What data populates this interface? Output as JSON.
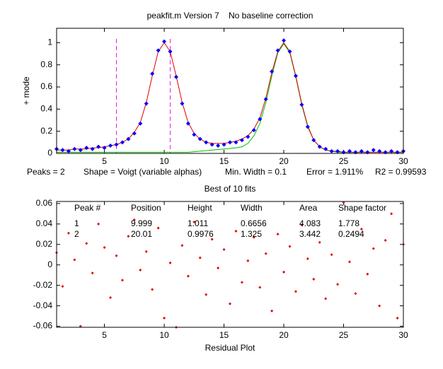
{
  "chart_data": [
    {
      "type": "line",
      "title": "peakfit.m Version 7    No baseline correction",
      "ylabel": "+ mode",
      "stats": [
        "Peaks = 2",
        "Shape = Voigt (variable alphas)",
        "Min. Width = 0.1",
        "Error = 1.911%",
        "R2 = 0.99593"
      ],
      "xlim": [
        1,
        30
      ],
      "xticks": [
        5,
        10,
        15,
        20,
        25,
        30
      ],
      "ylim": [
        0,
        1.13
      ],
      "yticks": [
        0,
        0.2,
        0.4,
        0.6,
        0.8,
        1
      ],
      "vlines": [
        6,
        10.5
      ],
      "vline_color": "#e020e0",
      "x": [
        1,
        1.5,
        2,
        2.5,
        3,
        3.5,
        4,
        4.5,
        5,
        5.5,
        6,
        6.5,
        7,
        7.5,
        8,
        8.5,
        9,
        9.5,
        10,
        10.5,
        11,
        11.5,
        12,
        12.5,
        13,
        13.5,
        14,
        14.5,
        15,
        15.5,
        16,
        16.5,
        17,
        17.5,
        18,
        18.5,
        19,
        19.5,
        20,
        20.5,
        21,
        21.5,
        22,
        22.5,
        23,
        23.5,
        24,
        24.5,
        25,
        25.5,
        26,
        26.5,
        27,
        27.5,
        28,
        28.5,
        29,
        29.5,
        30
      ],
      "series": [
        {
          "style": "line",
          "color": "#00c000",
          "values": [
            0.01,
            0.01,
            0.01,
            0.01,
            0.01,
            0.01,
            0.01,
            0.01,
            0.01,
            0.01,
            0.01,
            0.01,
            0.01,
            0.01,
            0.01,
            0.01,
            0.01,
            0.01,
            0.01,
            0.01,
            0.01,
            0.01,
            0.01,
            0.015,
            0.02,
            0.025,
            0.03,
            0.035,
            0.04,
            0.045,
            0.05,
            0.06,
            0.09,
            0.16,
            0.27,
            0.46,
            0.7,
            0.91,
            0.99,
            0.91,
            0.69,
            0.44,
            0.24,
            0.12,
            0.06,
            0.03,
            0.02,
            0.01,
            0.01,
            0.01,
            0.01,
            0.01,
            0.01,
            0.01,
            0.01,
            0.01,
            0.01,
            0.01,
            0.01
          ]
        },
        {
          "style": "line",
          "color": "#e00000",
          "values": [
            0.03,
            0.03,
            0.03,
            0.04,
            0.04,
            0.04,
            0.05,
            0.05,
            0.06,
            0.07,
            0.08,
            0.1,
            0.13,
            0.19,
            0.28,
            0.46,
            0.7,
            0.92,
            1.0,
            0.92,
            0.7,
            0.46,
            0.28,
            0.18,
            0.13,
            0.1,
            0.09,
            0.09,
            0.09,
            0.1,
            0.11,
            0.13,
            0.16,
            0.22,
            0.32,
            0.5,
            0.73,
            0.92,
            1.0,
            0.92,
            0.7,
            0.45,
            0.25,
            0.12,
            0.06,
            0.03,
            0.02,
            0.02,
            0.01,
            0.01,
            0.01,
            0.01,
            0.01,
            0.01,
            0.01,
            0.01,
            0.01,
            0.01,
            0.01
          ]
        },
        {
          "style": "markers",
          "color": "#0000ff",
          "values": [
            0.04,
            0.03,
            0.02,
            0.04,
            0.03,
            0.05,
            0.04,
            0.06,
            0.05,
            0.07,
            0.08,
            0.1,
            0.13,
            0.18,
            0.27,
            0.45,
            0.72,
            0.93,
            1.01,
            0.92,
            0.69,
            0.45,
            0.27,
            0.17,
            0.13,
            0.1,
            0.08,
            0.07,
            0.08,
            0.1,
            0.1,
            0.12,
            0.15,
            0.21,
            0.31,
            0.49,
            0.74,
            0.93,
            1.02,
            0.92,
            0.7,
            0.44,
            0.24,
            0.12,
            0.06,
            0.04,
            0.02,
            0.02,
            0.01,
            0.02,
            0.01,
            0.02,
            0.01,
            0.03,
            0.02,
            0.01,
            0.02,
            0.01,
            0.02
          ]
        }
      ]
    },
    {
      "type": "scatter",
      "title": "Best of 10 fits",
      "xlabel": "Residual Plot",
      "xlim": [
        1,
        30
      ],
      "xticks": [
        5,
        10,
        15,
        20,
        25,
        30
      ],
      "ylim": [
        -0.061,
        0.062
      ],
      "yticks": [
        -0.06,
        -0.04,
        -0.02,
        0,
        0.02,
        0.04,
        0.06
      ],
      "table": {
        "columns": [
          "Peak #",
          "Position",
          "Height",
          "Width",
          "Area",
          "Shape factor"
        ],
        "rows": [
          [
            "1",
            "9.999",
            "1.011",
            "0.6656",
            "4.083",
            "1.778"
          ],
          [
            "2",
            "20.01",
            "0.9976",
            "1.325",
            "3.442",
            "0.2494"
          ]
        ]
      },
      "x": [
        1,
        1.5,
        2,
        2.5,
        3,
        3.5,
        4,
        4.5,
        5,
        5.5,
        6,
        6.5,
        7,
        7.5,
        8,
        8.5,
        9,
        9.5,
        10,
        10.5,
        11,
        11.5,
        12,
        12.5,
        13,
        13.5,
        14,
        14.5,
        15,
        15.5,
        16,
        16.5,
        17,
        17.5,
        18,
        18.5,
        19,
        19.5,
        20,
        20.5,
        21,
        21.5,
        22,
        22.5,
        23,
        23.5,
        24,
        24.5,
        25,
        25.5,
        26,
        26.5,
        27,
        27.5,
        28,
        28.5,
        29,
        29.5,
        30
      ],
      "series": [
        {
          "style": "markers",
          "color": "#e00000",
          "values": [
            0.012,
            -0.021,
            0.031,
            0.005,
            -0.06,
            0.021,
            -0.008,
            0.04,
            0.017,
            -0.032,
            0.009,
            -0.015,
            0.028,
            0.044,
            -0.005,
            0.013,
            -0.024,
            0.036,
            -0.052,
            0.002,
            -0.061,
            0.019,
            -0.011,
            0.042,
            0.007,
            -0.029,
            0.025,
            -0.003,
            0.015,
            -0.038,
            0.033,
            -0.017,
            0.004,
            0.027,
            -0.022,
            0.011,
            -0.045,
            0.03,
            -0.007,
            0.018,
            -0.026,
            0.039,
            0.006,
            -0.014,
            0.022,
            -0.033,
            0.01,
            -0.019,
            0.061,
            0.003,
            -0.028,
            0.035,
            -0.009,
            0.016,
            -0.04,
            0.024,
            0.05,
            -0.052,
            0.02
          ]
        }
      ]
    }
  ]
}
